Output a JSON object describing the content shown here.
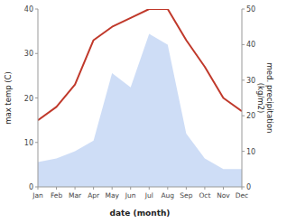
{
  "chart_data": {
    "type": "line",
    "categories": [
      "Jan",
      "Feb",
      "Mar",
      "Apr",
      "May",
      "Jun",
      "Jul",
      "Aug",
      "Sep",
      "Oct",
      "Nov",
      "Dec"
    ],
    "series": [
      {
        "type": "area",
        "axis": "y2",
        "color": "#aec6f0",
        "values": [
          7,
          8,
          10,
          13,
          32,
          28,
          43,
          40,
          15,
          8,
          5,
          5
        ]
      },
      {
        "type": "line",
        "color": "#c0392b",
        "values": [
          15,
          18,
          23,
          33,
          36,
          38,
          40,
          40,
          33,
          27,
          20,
          17
        ]
      }
    ],
    "xlabel": "date (month)",
    "ylabel": "max temp (C)",
    "y2label": "med. precipitation\n(kg/m2)",
    "ylim": [
      0,
      40
    ],
    "yticks": [
      0,
      10,
      20,
      30,
      40
    ],
    "y2lim": [
      0,
      50
    ],
    "y2ticks": [
      0,
      10,
      20,
      30,
      40,
      50
    ],
    "grid": false
  }
}
